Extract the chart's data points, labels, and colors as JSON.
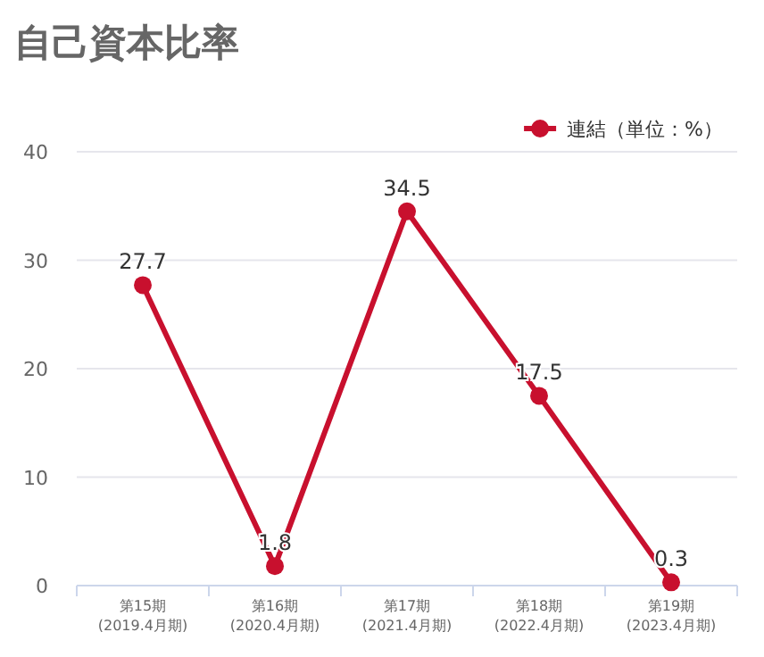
{
  "chart_data": {
    "type": "line",
    "title": "自己資本比率",
    "categories": [
      "第15期\n(2019.4月期)",
      "第16期\n(2020.4月期)",
      "第17期\n(2021.4月期)",
      "第18期\n(2022.4月期)",
      "第19期\n(2023.4月期)"
    ],
    "series": [
      {
        "name": "連結（単位：%）",
        "color": "#c8102e",
        "values": [
          27.7,
          1.8,
          34.5,
          17.5,
          0.3
        ]
      }
    ],
    "ylim": [
      0,
      40
    ],
    "yticks": [
      0,
      10,
      20,
      30,
      40
    ],
    "grid": "y",
    "legend": "top right",
    "marker": "circle",
    "line_style": "solid",
    "data_labels": true
  }
}
